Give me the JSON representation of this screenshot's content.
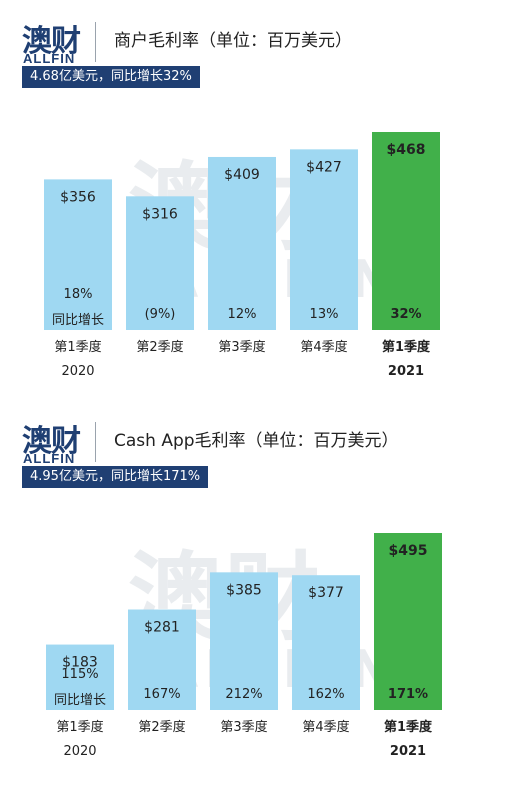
{
  "colors": {
    "brand": "#1f3f73",
    "bar_normal": "#9fd8f2",
    "bar_highlight": "#41b04a",
    "watermark": "#e9ecef"
  },
  "logo": {
    "cn": "澳财",
    "en": "ALLFIN"
  },
  "watermark": {
    "cn": "澳财",
    "en": "ALLFIN"
  },
  "panels": [
    {
      "title": "商户毛利率（单位：百万美元）",
      "banner": "4.68亿美元，同比增长32%"
    },
    {
      "title": "Cash App毛利率（单位：百万美元）",
      "banner": "4.95亿美元，同比增长171%"
    }
  ],
  "chart_data": [
    {
      "type": "bar",
      "title": "商户毛利率（单位：百万美元）",
      "categories": [
        [
          "第1季度",
          "2020"
        ],
        [
          "第2季度",
          ""
        ],
        [
          "第3季度",
          ""
        ],
        [
          "第4季度",
          ""
        ],
        [
          "第1季度",
          "2021"
        ]
      ],
      "values": [
        356,
        316,
        409,
        427,
        468
      ],
      "value_labels": [
        "$356",
        "$316",
        "$409",
        "$427",
        "$468"
      ],
      "growth_labels": [
        "18%",
        "(9%)",
        "12%",
        "13%",
        "32%"
      ],
      "growth_caption": "同比增长",
      "highlight_index": 4,
      "grid": false
    },
    {
      "type": "bar",
      "title": "Cash App毛利率（单位：百万美元）",
      "categories": [
        [
          "第1季度",
          "2020"
        ],
        [
          "第2季度",
          ""
        ],
        [
          "第3季度",
          ""
        ],
        [
          "第4季度",
          ""
        ],
        [
          "第1季度",
          "2021"
        ]
      ],
      "values": [
        183,
        281,
        385,
        377,
        495
      ],
      "value_labels": [
        "$183",
        "$281",
        "$385",
        "$377",
        "$495"
      ],
      "growth_labels": [
        "115%",
        "167%",
        "212%",
        "162%",
        "171%"
      ],
      "growth_caption": "同比增长",
      "highlight_index": 4,
      "grid": false
    }
  ]
}
